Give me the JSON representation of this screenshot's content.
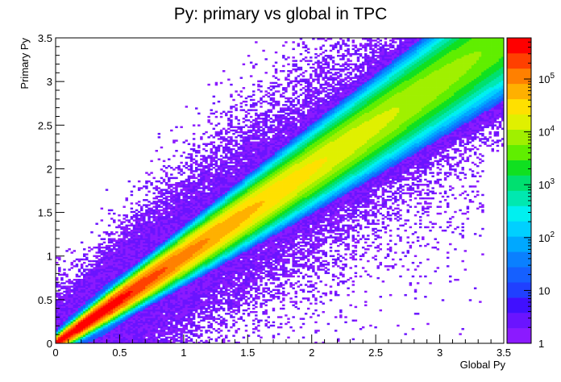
{
  "chart_data": {
    "type": "heatmap",
    "title": "Py: primary vs global in TPC",
    "xlabel": "Global Py",
    "ylabel": "Primary Py",
    "xlim": [
      0,
      3.5
    ],
    "ylim": [
      0,
      3.5
    ],
    "x_ticks": [
      {
        "value": 0,
        "label": "0"
      },
      {
        "value": 0.5,
        "label": "0.5"
      },
      {
        "value": 1,
        "label": "1"
      },
      {
        "value": 1.5,
        "label": "1.5"
      },
      {
        "value": 2,
        "label": "2"
      },
      {
        "value": 2.5,
        "label": "2.5"
      },
      {
        "value": 3,
        "label": "3"
      },
      {
        "value": 3.5,
        "label": "3.5"
      }
    ],
    "y_ticks": [
      {
        "value": 0,
        "label": "0"
      },
      {
        "value": 0.5,
        "label": "0.5"
      },
      {
        "value": 1,
        "label": "1"
      },
      {
        "value": 1.5,
        "label": "1.5"
      },
      {
        "value": 2,
        "label": "2"
      },
      {
        "value": 2.5,
        "label": "2.5"
      },
      {
        "value": 3,
        "label": "3"
      },
      {
        "value": 3.5,
        "label": "3.5"
      }
    ],
    "colorbar": {
      "scale": "log",
      "range": [
        1,
        600000
      ],
      "labels": [
        {
          "value": 1,
          "base": "1",
          "exp": ""
        },
        {
          "value": 10,
          "base": "10",
          "exp": ""
        },
        {
          "value": 100,
          "base": "10",
          "exp": "2"
        },
        {
          "value": 1000,
          "base": "10",
          "exp": "3"
        },
        {
          "value": 10000,
          "base": "10",
          "exp": "4"
        },
        {
          "value": 100000,
          "base": "10",
          "exp": "5"
        }
      ]
    },
    "grid": false,
    "distribution": "dense diagonal band along primary = global, peak density near the origin"
  }
}
